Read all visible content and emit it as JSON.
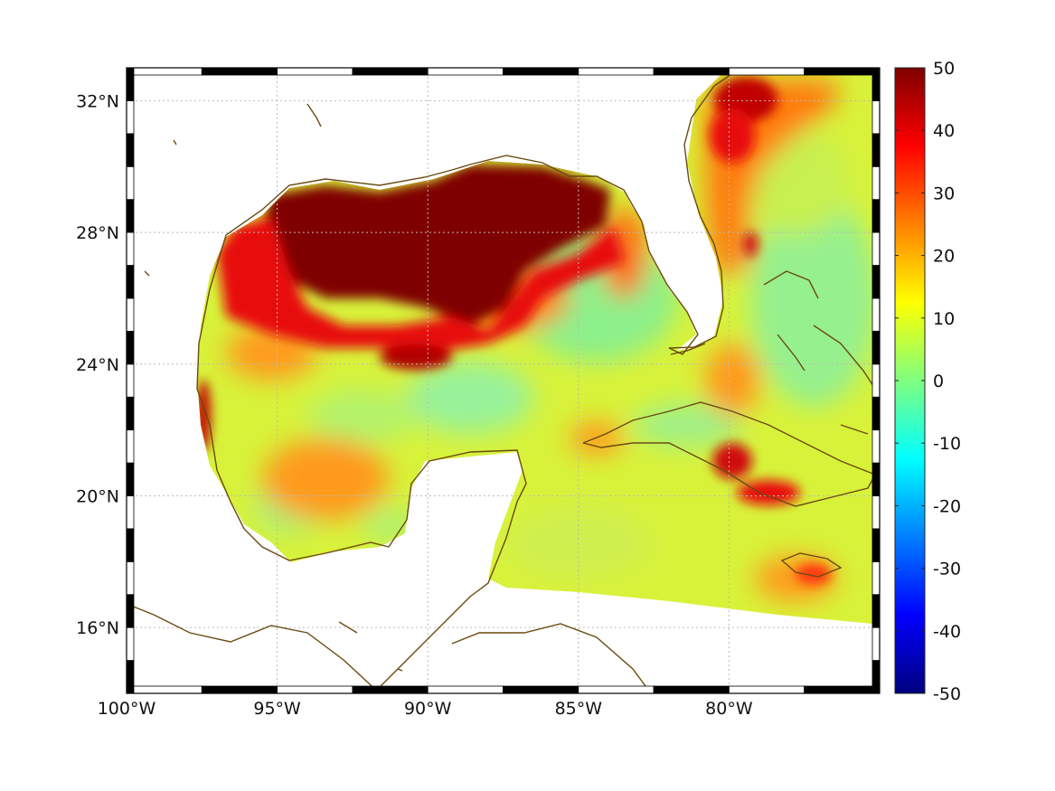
{
  "map": {
    "lon_range": [
      -100,
      -75
    ],
    "lat_range": [
      14,
      33
    ],
    "grid": true,
    "x_ticks": [
      {
        "lon": -100,
        "label": "100°W"
      },
      {
        "lon": -95,
        "label": "95°W"
      },
      {
        "lon": -90,
        "label": "90°W"
      },
      {
        "lon": -85,
        "label": "85°W"
      },
      {
        "lon": -80,
        "label": "80°W"
      }
    ],
    "y_ticks": [
      {
        "lat": 32,
        "label": "32°N"
      },
      {
        "lat": 28,
        "label": "28°N"
      },
      {
        "lat": 24,
        "label": "24°N"
      },
      {
        "lat": 20,
        "label": "20°N"
      },
      {
        "lat": 16,
        "label": "16°N"
      }
    ],
    "coastline_color": "#6b4a12",
    "colormap": "jet",
    "colormap_stops": [
      "#00007f",
      "#0000ff",
      "#007fff",
      "#00ffff",
      "#7fff7f",
      "#ffff00",
      "#ff7f00",
      "#ff0000",
      "#7f0000"
    ]
  },
  "colorbar": {
    "min": -50,
    "max": 50,
    "ticks": [
      {
        "value": 50,
        "label": "50"
      },
      {
        "value": 40,
        "label": "40"
      },
      {
        "value": 30,
        "label": "30"
      },
      {
        "value": 20,
        "label": "20"
      },
      {
        "value": 10,
        "label": "10"
      },
      {
        "value": 0,
        "label": "0"
      },
      {
        "value": -10,
        "label": "-10"
      },
      {
        "value": -20,
        "label": "-20"
      },
      {
        "value": -30,
        "label": "-30"
      },
      {
        "value": -40,
        "label": "-40"
      },
      {
        "value": -50,
        "label": "-50"
      }
    ]
  }
}
